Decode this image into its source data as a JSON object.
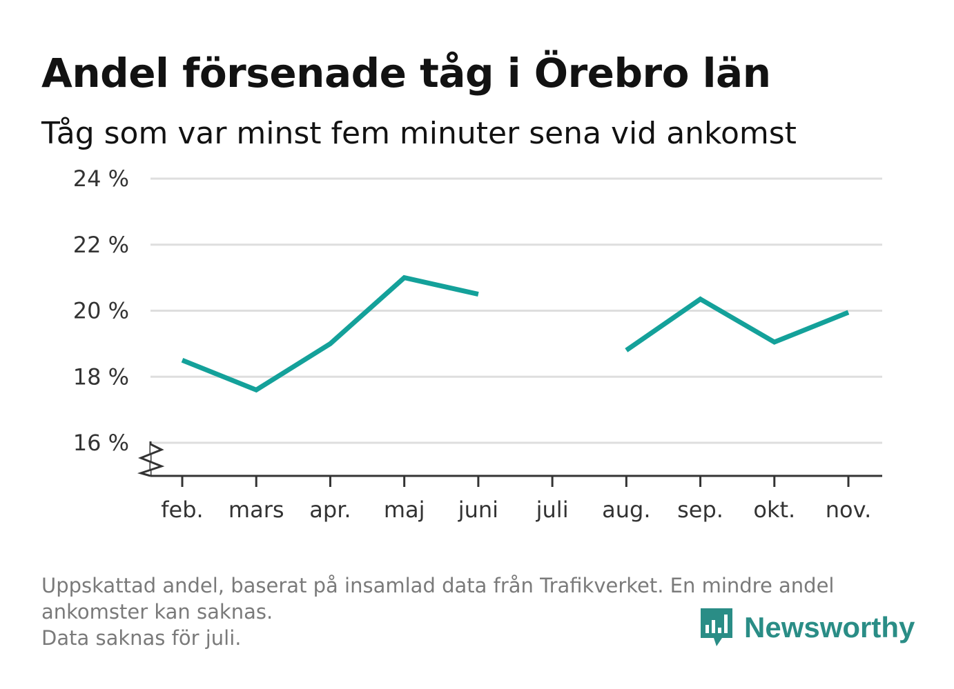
{
  "title": "Andel försenade tåg i Örebro län",
  "subtitle": "Tåg som var minst fem minuter sena vid ankomst",
  "footnote": {
    "line1": "Uppskattad andel, baserat på insamlad data från Trafikverket. En mindre andel",
    "line2": "ankomster kan saknas.",
    "line3": "Data saknas för juli."
  },
  "brand": {
    "name": "Newsworthy",
    "icon": "bar-chart-speech-bubble-icon",
    "color": "#2a8d86"
  },
  "chart_data": {
    "type": "line",
    "title": "Andel försenade tåg i Örebro län",
    "subtitle": "Tåg som var minst fem minuter sena vid ankomst",
    "categories": [
      "feb.",
      "mars",
      "apr.",
      "maj",
      "juni",
      "juli",
      "aug.",
      "sep.",
      "okt.",
      "nov."
    ],
    "series": [
      {
        "values": [
          18.5,
          17.6,
          19.0,
          21.0,
          20.5,
          null,
          18.8,
          20.35,
          19.05,
          19.95
        ]
      }
    ],
    "y_ticks": [
      16,
      18,
      20,
      22,
      24
    ],
    "y_tick_suffix": " %",
    "ylim": [
      15,
      24
    ],
    "grid": true,
    "axis_break": true,
    "line_color": "#14a19a"
  }
}
